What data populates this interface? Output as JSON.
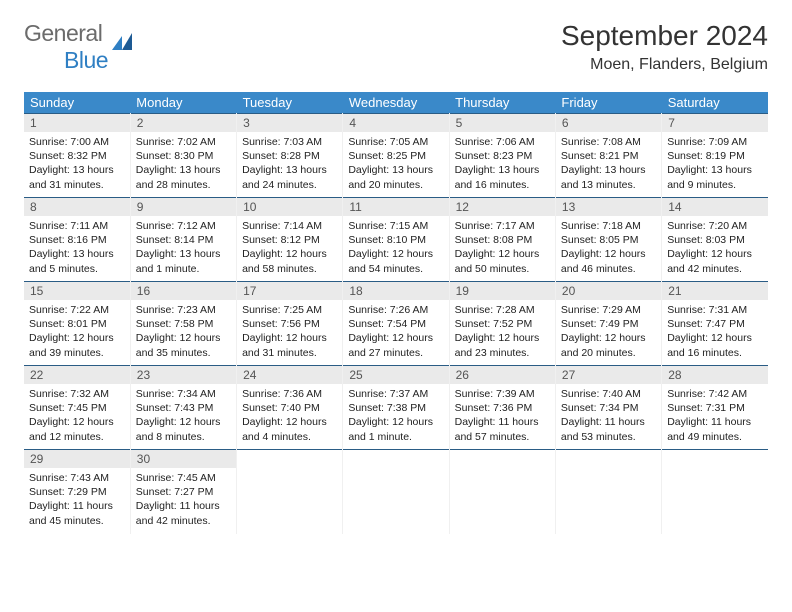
{
  "logo": {
    "general": "General",
    "blue": "Blue"
  },
  "title": "September 2024",
  "location": "Moen, Flanders, Belgium",
  "header_color": "#3a89c9",
  "border_color": "#2a5c85",
  "daynum_bg": "#eaeaea",
  "weekdays": [
    "Sunday",
    "Monday",
    "Tuesday",
    "Wednesday",
    "Thursday",
    "Friday",
    "Saturday"
  ],
  "days": [
    {
      "n": 1,
      "sunrise": "7:00 AM",
      "sunset": "8:32 PM",
      "daylight": "13 hours and 31 minutes."
    },
    {
      "n": 2,
      "sunrise": "7:02 AM",
      "sunset": "8:30 PM",
      "daylight": "13 hours and 28 minutes."
    },
    {
      "n": 3,
      "sunrise": "7:03 AM",
      "sunset": "8:28 PM",
      "daylight": "13 hours and 24 minutes."
    },
    {
      "n": 4,
      "sunrise": "7:05 AM",
      "sunset": "8:25 PM",
      "daylight": "13 hours and 20 minutes."
    },
    {
      "n": 5,
      "sunrise": "7:06 AM",
      "sunset": "8:23 PM",
      "daylight": "13 hours and 16 minutes."
    },
    {
      "n": 6,
      "sunrise": "7:08 AM",
      "sunset": "8:21 PM",
      "daylight": "13 hours and 13 minutes."
    },
    {
      "n": 7,
      "sunrise": "7:09 AM",
      "sunset": "8:19 PM",
      "daylight": "13 hours and 9 minutes."
    },
    {
      "n": 8,
      "sunrise": "7:11 AM",
      "sunset": "8:16 PM",
      "daylight": "13 hours and 5 minutes."
    },
    {
      "n": 9,
      "sunrise": "7:12 AM",
      "sunset": "8:14 PM",
      "daylight": "13 hours and 1 minute."
    },
    {
      "n": 10,
      "sunrise": "7:14 AM",
      "sunset": "8:12 PM",
      "daylight": "12 hours and 58 minutes."
    },
    {
      "n": 11,
      "sunrise": "7:15 AM",
      "sunset": "8:10 PM",
      "daylight": "12 hours and 54 minutes."
    },
    {
      "n": 12,
      "sunrise": "7:17 AM",
      "sunset": "8:08 PM",
      "daylight": "12 hours and 50 minutes."
    },
    {
      "n": 13,
      "sunrise": "7:18 AM",
      "sunset": "8:05 PM",
      "daylight": "12 hours and 46 minutes."
    },
    {
      "n": 14,
      "sunrise": "7:20 AM",
      "sunset": "8:03 PM",
      "daylight": "12 hours and 42 minutes."
    },
    {
      "n": 15,
      "sunrise": "7:22 AM",
      "sunset": "8:01 PM",
      "daylight": "12 hours and 39 minutes."
    },
    {
      "n": 16,
      "sunrise": "7:23 AM",
      "sunset": "7:58 PM",
      "daylight": "12 hours and 35 minutes."
    },
    {
      "n": 17,
      "sunrise": "7:25 AM",
      "sunset": "7:56 PM",
      "daylight": "12 hours and 31 minutes."
    },
    {
      "n": 18,
      "sunrise": "7:26 AM",
      "sunset": "7:54 PM",
      "daylight": "12 hours and 27 minutes."
    },
    {
      "n": 19,
      "sunrise": "7:28 AM",
      "sunset": "7:52 PM",
      "daylight": "12 hours and 23 minutes."
    },
    {
      "n": 20,
      "sunrise": "7:29 AM",
      "sunset": "7:49 PM",
      "daylight": "12 hours and 20 minutes."
    },
    {
      "n": 21,
      "sunrise": "7:31 AM",
      "sunset": "7:47 PM",
      "daylight": "12 hours and 16 minutes."
    },
    {
      "n": 22,
      "sunrise": "7:32 AM",
      "sunset": "7:45 PM",
      "daylight": "12 hours and 12 minutes."
    },
    {
      "n": 23,
      "sunrise": "7:34 AM",
      "sunset": "7:43 PM",
      "daylight": "12 hours and 8 minutes."
    },
    {
      "n": 24,
      "sunrise": "7:36 AM",
      "sunset": "7:40 PM",
      "daylight": "12 hours and 4 minutes."
    },
    {
      "n": 25,
      "sunrise": "7:37 AM",
      "sunset": "7:38 PM",
      "daylight": "12 hours and 1 minute."
    },
    {
      "n": 26,
      "sunrise": "7:39 AM",
      "sunset": "7:36 PM",
      "daylight": "11 hours and 57 minutes."
    },
    {
      "n": 27,
      "sunrise": "7:40 AM",
      "sunset": "7:34 PM",
      "daylight": "11 hours and 53 minutes."
    },
    {
      "n": 28,
      "sunrise": "7:42 AM",
      "sunset": "7:31 PM",
      "daylight": "11 hours and 49 minutes."
    },
    {
      "n": 29,
      "sunrise": "7:43 AM",
      "sunset": "7:29 PM",
      "daylight": "11 hours and 45 minutes."
    },
    {
      "n": 30,
      "sunrise": "7:45 AM",
      "sunset": "7:27 PM",
      "daylight": "11 hours and 42 minutes."
    }
  ],
  "labels": {
    "sunrise": "Sunrise:",
    "sunset": "Sunset:",
    "daylight": "Daylight:"
  }
}
